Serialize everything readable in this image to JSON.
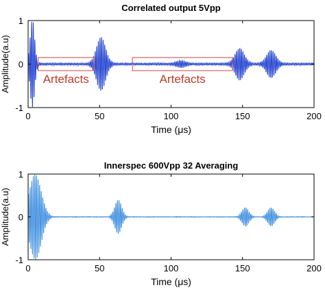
{
  "chart_data": [
    {
      "type": "line",
      "title": "Correlated output  5Vpp",
      "xlabel": "Time (μs)",
      "ylabel": "Amplitude(a.u)",
      "xlim": [
        0,
        200
      ],
      "ylim": [
        -1,
        1
      ],
      "x_ticks": [
        "0",
        "50",
        "100",
        "150",
        "200"
      ],
      "y_ticks": [
        "1",
        "0",
        "-1"
      ],
      "grid": false,
      "line_color": "#1f3fd0",
      "series": [
        {
          "signal": "wave packets (centre time μs, peak amplitude)",
          "packets": [
            {
              "t": 3,
              "amp": 1.0
            },
            {
              "t": 51,
              "amp": 0.6
            },
            {
              "t": 107,
              "amp": 0.06
            },
            {
              "t": 148,
              "amp": 0.35
            },
            {
              "t": 170,
              "amp": 0.3
            }
          ]
        }
      ],
      "annotations": [
        {
          "text": "Artefacts",
          "box_x": [
            7,
            46
          ],
          "box_y": [
            -0.15,
            0.15
          ]
        },
        {
          "text": "Artefacts",
          "box_x": [
            73,
            143
          ],
          "box_y": [
            -0.15,
            0.15
          ]
        }
      ]
    },
    {
      "type": "line",
      "title": "Innerspec 600Vpp 32 Averaging",
      "xlabel": "Time (μs)",
      "ylabel": "Amplitude(a.u)",
      "xlim": [
        0,
        200
      ],
      "ylim": [
        -1,
        1
      ],
      "x_ticks": [
        "0",
        "50",
        "100",
        "150",
        "200"
      ],
      "y_ticks": [
        "1",
        "0",
        "-1"
      ],
      "grid": false,
      "line_color": "#3f8fe0",
      "series": [
        {
          "signal": "wave packets (centre time μs, peak amplitude)",
          "packets": [
            {
              "t": 5,
              "amp": 1.0
            },
            {
              "t": 63,
              "amp": 0.4
            },
            {
              "t": 152,
              "amp": 0.22
            },
            {
              "t": 170,
              "amp": 0.22
            }
          ]
        }
      ]
    }
  ]
}
